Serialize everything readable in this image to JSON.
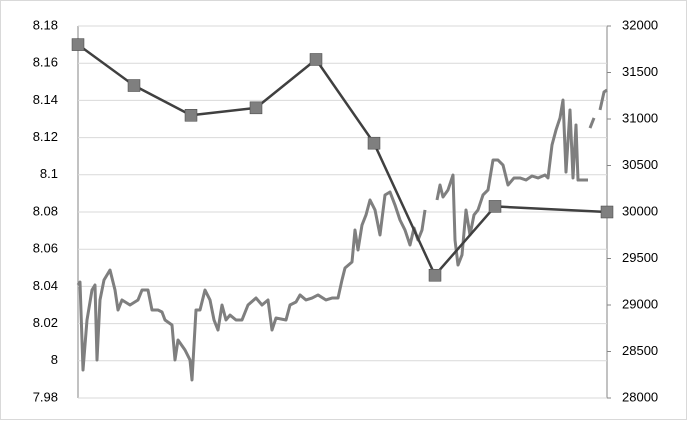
{
  "chart_data": {
    "type": "line",
    "xlim": [
      0,
      529
    ],
    "ylim": [
      7.98,
      8.18
    ],
    "yticks": [
      7.98,
      8,
      8.02,
      8.04,
      8.06,
      8.08,
      8.1,
      8.12,
      8.14,
      8.16,
      8.18
    ],
    "y2lim": [
      28000,
      32000
    ],
    "y2ticks": [
      28000,
      28500,
      29000,
      29500,
      30000,
      30500,
      31000,
      31500,
      32000
    ],
    "grid": true,
    "series": [
      {
        "color": "#404040",
        "marker_color": "#7f7f7f",
        "marker": "square",
        "x": [
          0,
          56,
          113,
          178,
          238,
          296,
          357,
          417,
          529
        ],
        "values": [
          8.17,
          8.148,
          8.132,
          8.136,
          8.162,
          8.117,
          8.046,
          8.083,
          8.08
        ]
      },
      {
        "color": "#7f7f7f",
        "axis": "y2",
        "x": [
          0,
          2,
          5,
          9,
          14,
          17,
          19,
          22,
          26,
          32,
          37,
          40,
          44,
          52,
          60,
          64,
          70,
          74,
          80,
          84,
          87,
          94,
          97,
          100,
          107,
          112,
          114,
          118,
          122,
          127,
          132,
          136,
          140,
          144,
          148,
          152,
          158,
          164,
          170,
          178,
          184,
          190,
          194,
          198,
          208,
          212,
          218,
          222,
          228,
          234,
          240,
          248,
          254,
          260,
          264,
          267,
          274,
          277,
          280,
          284,
          288,
          292,
          297,
          302,
          307,
          312,
          317,
          322,
          327,
          332,
          336,
          340,
          344,
          347,
          353,
          359,
          362,
          365,
          370,
          375,
          377,
          380,
          384,
          388,
          392,
          396,
          400,
          405,
          410,
          415,
          420,
          425,
          430,
          436,
          442,
          448,
          454,
          460,
          467,
          470,
          474,
          478,
          482,
          485,
          488,
          492,
          495,
          498,
          500,
          510,
          511,
          512,
          516,
          519,
          522,
          526,
          529
        ],
        "values": [
          29215,
          29247,
          28301,
          28839,
          29161,
          29215,
          28409,
          29054,
          29269,
          29376,
          29161,
          28946,
          29054,
          29000,
          29054,
          29161,
          29161,
          28946,
          28946,
          28925,
          28839,
          28785,
          28409,
          28624,
          28516,
          28409,
          28194,
          28946,
          28946,
          29161,
          29054,
          28839,
          28731,
          29000,
          28839,
          28892,
          28839,
          28839,
          29000,
          29075,
          29000,
          29054,
          28731,
          28860,
          28839,
          29000,
          29032,
          29108,
          29054,
          29075,
          29108,
          29054,
          29075,
          29075,
          29269,
          29398,
          29462,
          29806,
          29591,
          29860,
          29968,
          30129,
          30022,
          29753,
          30183,
          30215,
          30075,
          29914,
          29806,
          29645,
          29828,
          29699,
          29806,
          30022,
          null,
          30129,
          30290,
          30161,
          30237,
          30398,
          29699,
          29430,
          29538,
          30022,
          29753,
          29968,
          30022,
          30183,
          30237,
          30559,
          30559,
          30505,
          30290,
          30366,
          30366,
          30344,
          30387,
          30366,
          30398,
          30366,
          30720,
          30882,
          31011,
          31204,
          30430,
          31097,
          30366,
          30935,
          30344,
          30344,
          null,
          30903,
          31011,
          null,
          31097,
          31290,
          31312
        ]
      }
    ]
  }
}
